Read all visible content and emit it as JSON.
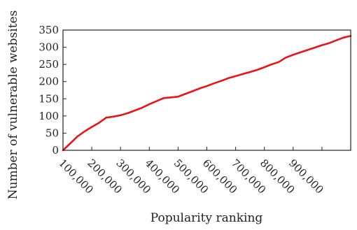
{
  "chart_data": {
    "type": "line",
    "title": "",
    "xlabel": "Popularity ranking",
    "ylabel": "Number of vulnerable websites",
    "xlim": [
      0,
      1000000
    ],
    "ylim": [
      0,
      350
    ],
    "grid": false,
    "x_ticks": [
      100000,
      200000,
      300000,
      400000,
      500000,
      600000,
      700000,
      800000,
      900000
    ],
    "x_tick_labels": [
      "100,000",
      "200,000",
      "300,000",
      "400,000",
      "500,000",
      "600,000",
      "700,000",
      "800,000",
      "900,000"
    ],
    "y_ticks": [
      0,
      50,
      100,
      150,
      200,
      250,
      300,
      350
    ],
    "y_tick_labels": [
      "0",
      "50",
      "100",
      "150",
      "200",
      "250",
      "300",
      "350"
    ],
    "series": [
      {
        "color": "#e8141a",
        "x": [
          0,
          25000,
          50000,
          75000,
          100000,
          125000,
          150000,
          175000,
          200000,
          225000,
          250000,
          275000,
          300000,
          325000,
          350000,
          375000,
          400000,
          425000,
          450000,
          475000,
          500000,
          525000,
          550000,
          575000,
          600000,
          625000,
          650000,
          675000,
          700000,
          725000,
          750000,
          775000,
          800000,
          825000,
          850000,
          875000,
          900000,
          925000,
          950000,
          975000,
          1000000
        ],
        "y": [
          0,
          20,
          40,
          55,
          68,
          80,
          95,
          98,
          102,
          108,
          116,
          124,
          134,
          143,
          152,
          154,
          156,
          164,
          172,
          180,
          187,
          195,
          202,
          210,
          216,
          222,
          228,
          234,
          242,
          250,
          257,
          270,
          278,
          285,
          292,
          299,
          306,
          312,
          320,
          328,
          333
        ]
      }
    ]
  }
}
